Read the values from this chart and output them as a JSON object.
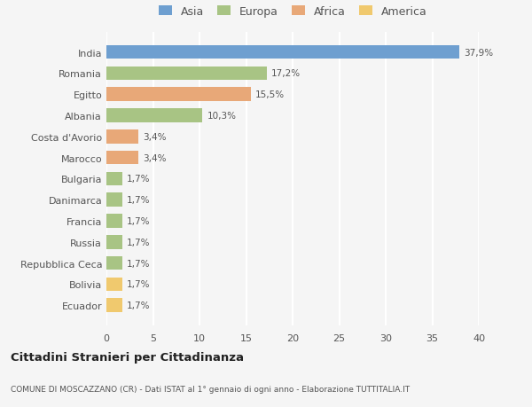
{
  "categories": [
    "Ecuador",
    "Bolivia",
    "Repubblica Ceca",
    "Russia",
    "Francia",
    "Danimarca",
    "Bulgaria",
    "Marocco",
    "Costa d'Avorio",
    "Albania",
    "Egitto",
    "Romania",
    "India"
  ],
  "values": [
    1.7,
    1.7,
    1.7,
    1.7,
    1.7,
    1.7,
    1.7,
    3.4,
    3.4,
    10.3,
    15.5,
    17.2,
    37.9
  ],
  "labels": [
    "1,7%",
    "1,7%",
    "1,7%",
    "1,7%",
    "1,7%",
    "1,7%",
    "1,7%",
    "3,4%",
    "3,4%",
    "10,3%",
    "15,5%",
    "17,2%",
    "37,9%"
  ],
  "colors": [
    "#f0c96e",
    "#f0c96e",
    "#a8c484",
    "#a8c484",
    "#a8c484",
    "#a8c484",
    "#a8c484",
    "#e8a878",
    "#e8a878",
    "#a8c484",
    "#e8a878",
    "#a8c484",
    "#6e9fd0"
  ],
  "continent_colors": {
    "Asia": "#6e9fd0",
    "Europa": "#a8c484",
    "Africa": "#e8a878",
    "America": "#f0c96e"
  },
  "legend_labels": [
    "Asia",
    "Europa",
    "Africa",
    "America"
  ],
  "title": "Cittadini Stranieri per Cittadinanza",
  "subtitle": "COMUNE DI MOSCAZZANO (CR) - Dati ISTAT al 1° gennaio di ogni anno - Elaborazione TUTTITALIA.IT",
  "xlim": [
    0,
    40
  ],
  "xticks": [
    0,
    5,
    10,
    15,
    20,
    25,
    30,
    35,
    40
  ],
  "background_color": "#f5f5f5",
  "bar_height": 0.65,
  "grid_color": "#ffffff",
  "text_color": "#555555"
}
